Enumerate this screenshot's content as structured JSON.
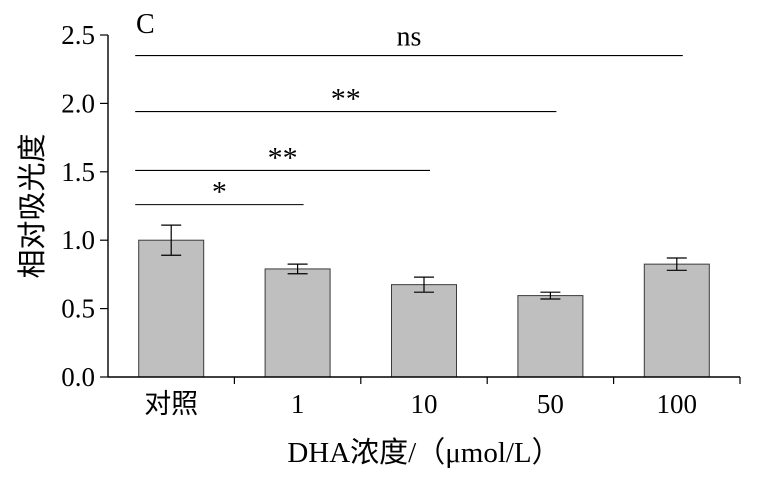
{
  "chart_data": {
    "type": "bar",
    "panel_label": "C",
    "xlabel": "DHA浓度/（μmol/L）",
    "ylabel": "相对吸光度",
    "ylim": [
      0.0,
      2.5
    ],
    "yticks": [
      "0.0",
      "0.5",
      "1.0",
      "1.5",
      "2.0",
      "2.5"
    ],
    "ytick_values": [
      0.0,
      0.5,
      1.0,
      1.5,
      2.0,
      2.5
    ],
    "categories": [
      "对照",
      "1",
      "10",
      "50",
      "100"
    ],
    "values": [
      1.0,
      0.79,
      0.675,
      0.595,
      0.825
    ],
    "errors": [
      0.11,
      0.035,
      0.055,
      0.025,
      0.045
    ],
    "bar_color": "#bfbfbf",
    "significance": [
      {
        "from": 0,
        "to": 1,
        "y": 1.26,
        "label": "*"
      },
      {
        "from": 0,
        "to": 2,
        "y": 1.51,
        "label": "**"
      },
      {
        "from": 0,
        "to": 3,
        "y": 1.94,
        "label": "**"
      },
      {
        "from": 0,
        "to": 4,
        "y": 2.35,
        "label": "ns"
      }
    ]
  }
}
